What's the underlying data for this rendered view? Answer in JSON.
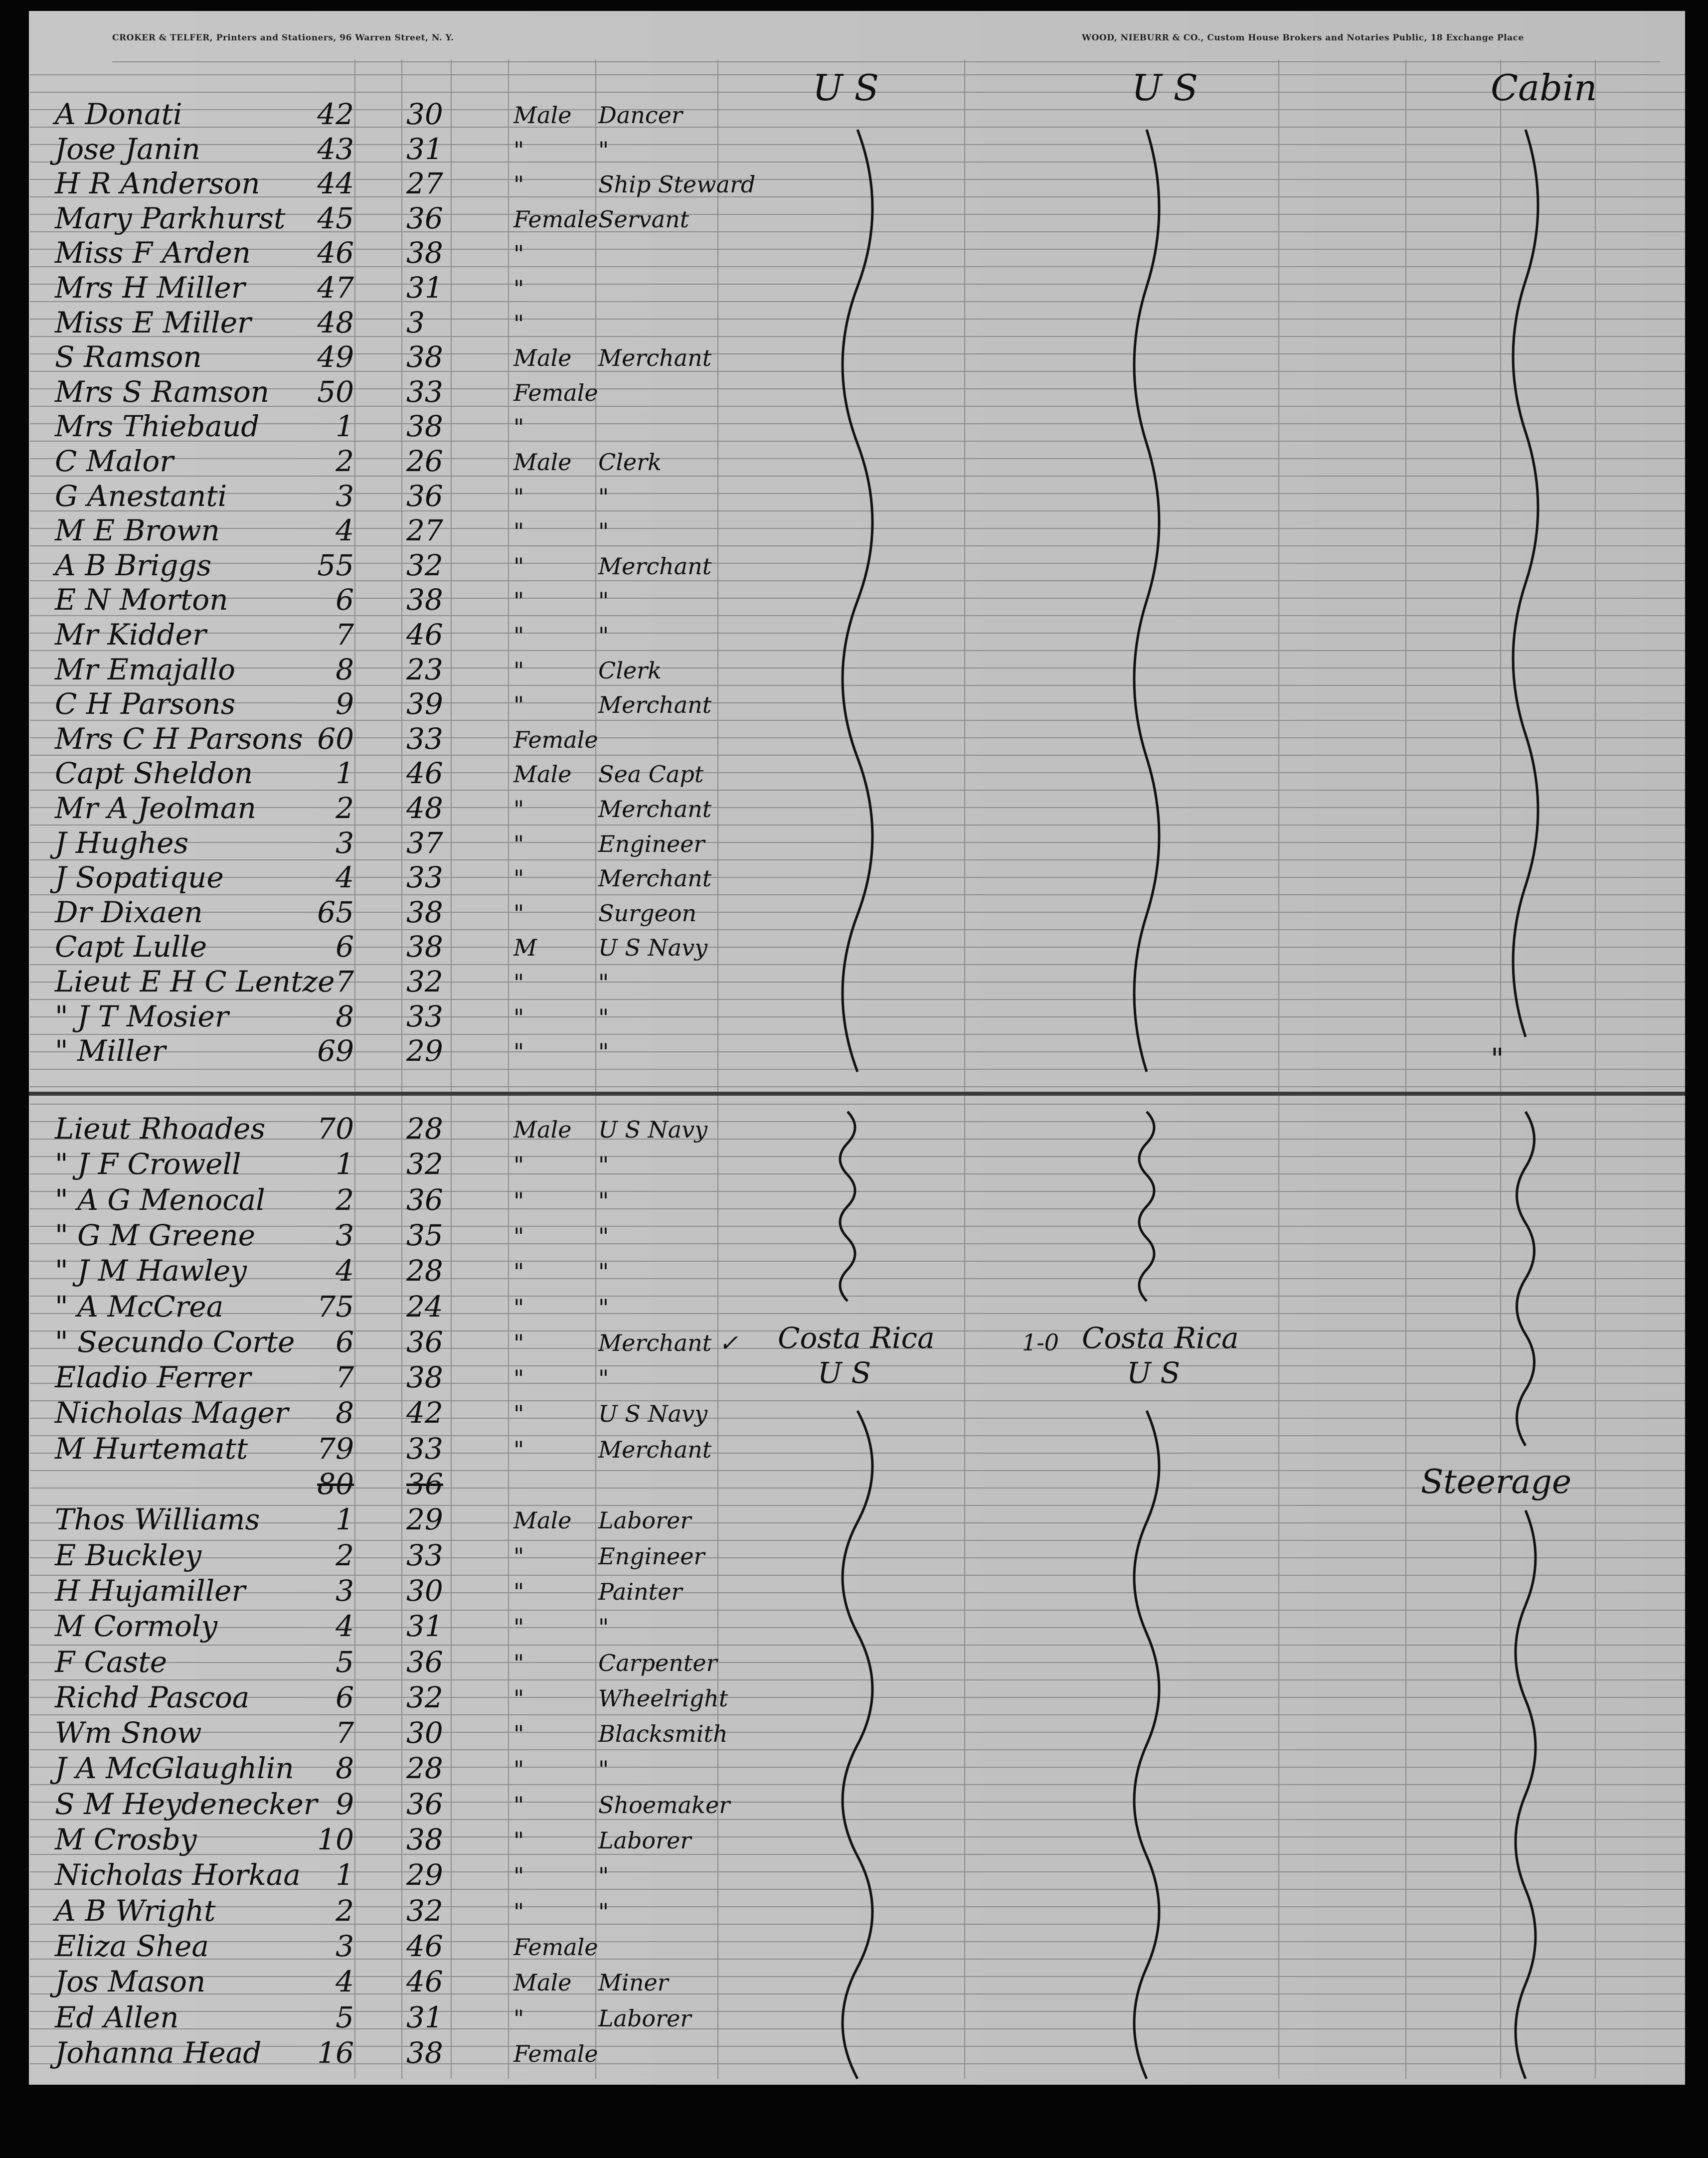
{
  "header": {
    "left_imprint": "CROKER & TELFER, Printers and Stationers, 96 Warren Street, N. Y.",
    "right_imprint": "WOOD, NIEBURR & CO., Custom House Brokers and Notaries Public, 18 Exchange Place"
  },
  "column_heads": {
    "citizenship": "U S",
    "destination": "U S",
    "class": "Cabin"
  },
  "upper_rows": [
    {
      "name": "A Donati",
      "no": "42",
      "age": "30",
      "sex": "Male",
      "occupation": "Dancer"
    },
    {
      "name": "Jose Janin",
      "no": "43",
      "age": "31",
      "sex": "\"",
      "occupation": "\""
    },
    {
      "name": "H R Anderson",
      "no": "44",
      "age": "27",
      "sex": "\"",
      "occupation": "Ship Steward"
    },
    {
      "name": "Mary Parkhurst",
      "no": "45",
      "age": "36",
      "sex": "Female",
      "occupation": "Servant"
    },
    {
      "name": "Miss F Arden",
      "no": "46",
      "age": "38",
      "sex": "\"",
      "occupation": ""
    },
    {
      "name": "Mrs H Miller",
      "no": "47",
      "age": "31",
      "sex": "\"",
      "occupation": ""
    },
    {
      "name": "Miss E Miller",
      "no": "48",
      "age": "3",
      "sex": "\"",
      "occupation": ""
    },
    {
      "name": "S Ramson",
      "no": "49",
      "age": "38",
      "sex": "Male",
      "occupation": "Merchant"
    },
    {
      "name": "Mrs S Ramson",
      "no": "50",
      "age": "33",
      "sex": "Female",
      "occupation": ""
    },
    {
      "name": "Mrs Thiebaud",
      "no": "1",
      "age": "38",
      "sex": "\"",
      "occupation": ""
    },
    {
      "name": "C Malor",
      "no": "2",
      "age": "26",
      "sex": "Male",
      "occupation": "Clerk"
    },
    {
      "name": "G Anestanti",
      "no": "3",
      "age": "36",
      "sex": "\"",
      "occupation": "\""
    },
    {
      "name": "M E Brown",
      "no": "4",
      "age": "27",
      "sex": "\"",
      "occupation": "\""
    },
    {
      "name": "A B Briggs",
      "no": "55",
      "age": "32",
      "sex": "\"",
      "occupation": "Merchant"
    },
    {
      "name": "E N Morton",
      "no": "6",
      "age": "38",
      "sex": "\"",
      "occupation": "\""
    },
    {
      "name": "Mr Kidder",
      "no": "7",
      "age": "46",
      "sex": "\"",
      "occupation": "\""
    },
    {
      "name": "Mr Emajallo",
      "no": "8",
      "age": "23",
      "sex": "\"",
      "occupation": "Clerk"
    },
    {
      "name": "C H Parsons",
      "no": "9",
      "age": "39",
      "sex": "\"",
      "occupation": "Merchant"
    },
    {
      "name": "Mrs C H Parsons",
      "no": "60",
      "age": "33",
      "sex": "Female",
      "occupation": ""
    },
    {
      "name": "Capt Sheldon",
      "no": "1",
      "age": "46",
      "sex": "Male",
      "occupation": "Sea Capt"
    },
    {
      "name": "Mr A Jeolman",
      "no": "2",
      "age": "48",
      "sex": "\"",
      "occupation": "Merchant"
    },
    {
      "name": "J Hughes",
      "no": "3",
      "age": "37",
      "sex": "\"",
      "occupation": "Engineer"
    },
    {
      "name": "J Sopatique",
      "no": "4",
      "age": "33",
      "sex": "\"",
      "occupation": "Merchant"
    },
    {
      "name": "Dr Dixaen",
      "no": "65",
      "age": "38",
      "sex": "\"",
      "occupation": "Surgeon"
    },
    {
      "name": "Capt Lulle",
      "no": "6",
      "age": "38",
      "sex": "M",
      "occupation": "U S Navy"
    },
    {
      "name": "Lieut E H C Lentze",
      "no": "7",
      "age": "32",
      "sex": "\"",
      "occupation": "\""
    },
    {
      "name": "\" J T Mosier",
      "no": "8",
      "age": "33",
      "sex": "\"",
      "occupation": "\""
    },
    {
      "name": "\" Miller",
      "no": "69",
      "age": "29",
      "sex": "\"",
      "occupation": "\""
    }
  ],
  "upper_class_ditto": "\"",
  "lower_rows": [
    {
      "name": "Lieut Rhoades",
      "no": "70",
      "age": "28",
      "sex": "Male",
      "occupation": "U S Navy"
    },
    {
      "name": "\" J F Crowell",
      "no": "1",
      "age": "32",
      "sex": "\"",
      "occupation": "\""
    },
    {
      "name": "\" A G Menocal",
      "no": "2",
      "age": "36",
      "sex": "\"",
      "occupation": "\""
    },
    {
      "name": "\" G M Greene",
      "no": "3",
      "age": "35",
      "sex": "\"",
      "occupation": "\""
    },
    {
      "name": "\" J M Hawley",
      "no": "4",
      "age": "28",
      "sex": "\"",
      "occupation": "\""
    },
    {
      "name": "\" A McCrea",
      "no": "75",
      "age": "24",
      "sex": "\"",
      "occupation": "\""
    },
    {
      "name": "\" Secundo Corte",
      "no": "6",
      "age": "36",
      "sex": "\"",
      "occupation": "Merchant ✓"
    },
    {
      "name": "Eladio Ferrer",
      "no": "7",
      "age": "38",
      "sex": "\"",
      "occupation": "\""
    },
    {
      "name": "Nicholas Mager",
      "no": "8",
      "age": "42",
      "sex": "\"",
      "occupation": "U S Navy"
    },
    {
      "name": "M Hurtematt",
      "no": "79",
      "age": "33",
      "sex": "\"",
      "occupation": "Merchant"
    },
    {
      "name": "",
      "no": "80",
      "age": "36",
      "sex": "",
      "occupation": "",
      "struck": true
    },
    {
      "name": "Thos Williams",
      "no": "1",
      "age": "29",
      "sex": "Male",
      "occupation": "Laborer"
    },
    {
      "name": "E Buckley",
      "no": "2",
      "age": "33",
      "sex": "\"",
      "occupation": "Engineer"
    },
    {
      "name": "H Hujamiller",
      "no": "3",
      "age": "30",
      "sex": "\"",
      "occupation": "Painter"
    },
    {
      "name": "M Cormoly",
      "no": "4",
      "age": "31",
      "sex": "\"",
      "occupation": "\""
    },
    {
      "name": "F Caste",
      "no": "5",
      "age": "36",
      "sex": "\"",
      "occupation": "Carpenter"
    },
    {
      "name": "Richd Pascoa",
      "no": "6",
      "age": "32",
      "sex": "\"",
      "occupation": "Wheelright"
    },
    {
      "name": "Wm Snow",
      "no": "7",
      "age": "30",
      "sex": "\"",
      "occupation": "Blacksmith"
    },
    {
      "name": "J A McGlaughlin",
      "no": "8",
      "age": "28",
      "sex": "\"",
      "occupation": "\""
    },
    {
      "name": "S M Heydenecker",
      "no": "9",
      "age": "36",
      "sex": "\"",
      "occupation": "Shoemaker"
    },
    {
      "name": "M Crosby",
      "no": "10",
      "age": "38",
      "sex": "\"",
      "occupation": "Laborer"
    },
    {
      "name": "Nicholas Horkaa",
      "no": "1",
      "age": "29",
      "sex": "\"",
      "occupation": "\""
    },
    {
      "name": "A B Wright",
      "no": "2",
      "age": "32",
      "sex": "\"",
      "occupation": "\""
    },
    {
      "name": "Eliza Shea",
      "no": "3",
      "age": "46",
      "sex": "Female",
      "occupation": ""
    },
    {
      "name": "Jos Mason",
      "no": "4",
      "age": "46",
      "sex": "Male",
      "occupation": "Miner"
    },
    {
      "name": "Ed Allen",
      "no": "5",
      "age": "31",
      "sex": "\"",
      "occupation": "Laborer"
    },
    {
      "name": "Johanna Head",
      "no": "16",
      "age": "38",
      "sex": "Female",
      "occupation": ""
    }
  ],
  "lower_annotations": {
    "citizenship_1": "Costa Rica",
    "citizenship_2": "U S",
    "mark": "1-0",
    "destination_1": "Costa Rica",
    "destination_2": "U S",
    "class": "Steerage"
  }
}
